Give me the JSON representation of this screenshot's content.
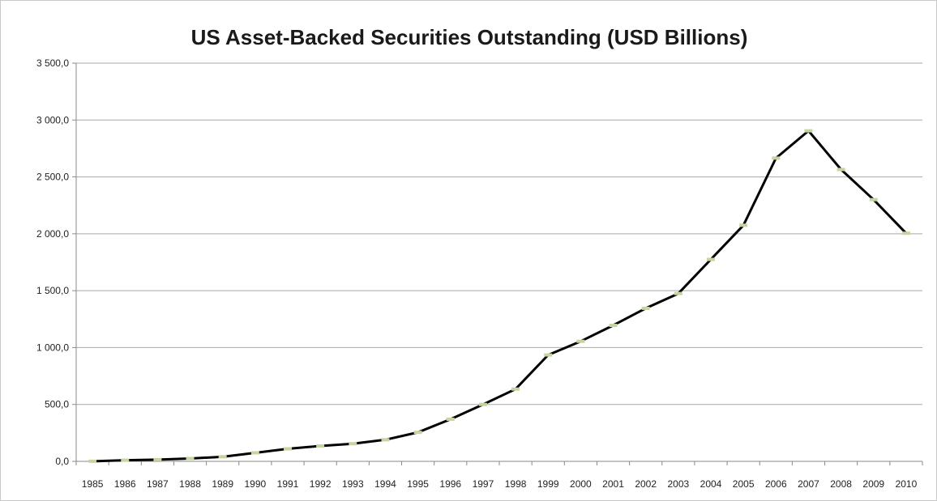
{
  "chart_data": {
    "type": "line",
    "title": "US Asset-Backed Securities Outstanding (USD Billions)",
    "xlabel": "",
    "ylabel": "",
    "ylim": [
      0,
      3500
    ],
    "y_ticks": [
      0,
      500,
      1000,
      1500,
      2000,
      2500,
      3000,
      3500
    ],
    "y_tick_labels": [
      "0,0",
      "500,0",
      "1 000,0",
      "1 500,0",
      "2 000,0",
      "2 500,0",
      "3 000,0",
      "3 500,0"
    ],
    "grid": "horizontal",
    "legend": "none",
    "categories": [
      "1985",
      "1986",
      "1987",
      "1988",
      "1989",
      "1990",
      "1991",
      "1992",
      "1993",
      "1994",
      "1995",
      "1996",
      "1997",
      "1998",
      "1999",
      "2000",
      "2001",
      "2002",
      "2003",
      "2004",
      "2005",
      "2006",
      "2007",
      "2008",
      "2009",
      "2010"
    ],
    "series": [
      {
        "values": [
          1,
          10,
          15,
          25,
          40,
          75,
          110,
          135,
          155,
          190,
          255,
          370,
          500,
          635,
          935,
          1055,
          1195,
          1345,
          1475,
          1775,
          2075,
          2665,
          2905,
          2565,
          2300,
          2005
        ]
      }
    ],
    "line_color": "#000000",
    "marker_color": "#c5d5a0",
    "grid_color": "#a9a9a9"
  }
}
